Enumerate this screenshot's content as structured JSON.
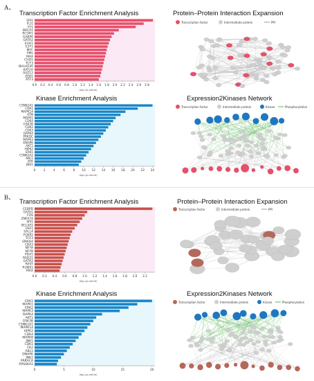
{
  "panels": [
    {
      "label": "A、",
      "tf_title": "Transcription Factor Enrichment Analysis",
      "ppi_title": "Protein–Protein Interaction Expansion",
      "kinase_title": "Kinase Enrichment Analysis",
      "x2k_title": "Expression2Kinases Network"
    },
    {
      "label": "B、",
      "tf_title": "Transcription Factor Enrichment Analysis",
      "ppi_title": "Protein–Protein Interaction Expansion",
      "kinase_title": "Kinase Enrichment Analysis",
      "x2k_title": "Expression2Kinases Network"
    }
  ],
  "legend": {
    "tf": "Transcription factor",
    "intermediate": "Intermediate protein",
    "kinase": "Kinase",
    "phospho": "Phosphorylation",
    "ppi": "PPI"
  },
  "colors": {
    "tf_bar_a": "#e8506a",
    "kinase_bar": "#1a86c8",
    "tf_bar_b": "#c8524a",
    "highlight_band": "#f8d7ee",
    "kinase_band": "#d3f0f8",
    "tf_node": "#e5506a",
    "tf_node_b": "#b5685a",
    "inter_node": "#cfcfcf",
    "kinase_node": "#1f77c0",
    "edge_ppi": "#9a9a9a",
    "edge_phos": "#5ab55a"
  },
  "chart_data": [
    {
      "type": "bar",
      "orientation": "horizontal",
      "title": "Transcription Factor Enrichment Analysis",
      "categories": [
        "SPI1",
        "FLI1",
        "YY1",
        "BRCA1",
        "RCOR1",
        "GABPA",
        "GATA2",
        "EGR1",
        "E2F1",
        "MYC",
        "PML",
        "MAX",
        "CHD1",
        "TCF3",
        "BHLHE40",
        "KAT2A",
        "SUZ12",
        "ZEB1",
        "ATF3"
      ],
      "values": [
        2.95,
        2.72,
        2.52,
        2.1,
        1.98,
        1.92,
        1.88,
        1.85,
        1.82,
        1.8,
        1.78,
        1.76,
        1.74,
        1.72,
        1.7,
        1.68,
        1.66,
        1.64,
        1.6
      ],
      "xlabel": "-log₁₀(p-value)",
      "xticks": [
        "0.0",
        "0.2",
        "0.4",
        "0.6",
        "0.8",
        "1.0",
        "1.2",
        "1.4",
        "1.6",
        "1.8",
        "2.0",
        "2.2",
        "2.4",
        "2.6",
        "2.8"
      ],
      "xlim": [
        0,
        3.0
      ]
    },
    {
      "type": "bar",
      "orientation": "horizontal",
      "title": "Kinase Enrichment Analysis",
      "categories": [
        "CSNK2A1",
        "CDK1",
        "MAPK14",
        "ATM",
        "MAPK1",
        "CDK4",
        "GSK3B",
        "CDK2",
        "CDK3",
        "DAPK4",
        "PRKDC",
        "MAPK3",
        "DNAPK",
        "AKT1",
        "HIPK2",
        "ERK1",
        "CSNK2A2",
        "ABL1",
        "ATR",
        "JNK1"
      ],
      "values": [
        24,
        21,
        18.5,
        17.5,
        16.5,
        16,
        15.5,
        15,
        14.5,
        14,
        13.5,
        13,
        12.5,
        12,
        11.5,
        11,
        10.5,
        10,
        9.5,
        9
      ],
      "xlabel": "-log₁₀(p-value)",
      "xticks": [
        "0",
        "2",
        "4",
        "6",
        "8",
        "10",
        "12",
        "14",
        "16",
        "18",
        "20",
        "22",
        "24"
      ],
      "xlim": [
        0,
        24.5
      ]
    },
    {
      "type": "bar",
      "orientation": "horizontal",
      "title": "Transcription Factor Enrichment Analysis",
      "categories": [
        "CEBPD",
        "GATA1",
        "FOS",
        "ZNF674",
        "SPI1",
        "BCLAF1",
        "USF1",
        "SALL4",
        "FOXP2",
        "TCF3",
        "SMAD4",
        "CBX3",
        "NFYA",
        "NFYB",
        "PDX1",
        "RAD21",
        "GATA2",
        "REST",
        "RUNX1",
        "MAX"
      ],
      "values": [
        2.35,
        1.05,
        1.0,
        0.95,
        0.9,
        0.85,
        0.8,
        0.75,
        0.72,
        0.7,
        0.68,
        0.66,
        0.64,
        0.62,
        0.6,
        0.58,
        0.56,
        0.54,
        0.52,
        0.5
      ],
      "xlabel": "-log₁₀(p-value)",
      "xticks": [
        "0.0",
        "0.2",
        "0.4",
        "0.6",
        "0.8",
        "1.0",
        "1.2",
        "1.4",
        "1.6",
        "1.8",
        "2.0",
        "2.2"
      ],
      "xlim": [
        0,
        2.4
      ]
    },
    {
      "type": "bar",
      "orientation": "horizontal",
      "title": "Kinase Enrichment Analysis",
      "categories": [
        "ERK1",
        "MAPK1",
        "ERK2",
        "MAPK3",
        "DAPK4",
        "AKT1",
        "GSK3B",
        "CSNK2A1",
        "MAPK14",
        "HIPK2",
        "CDK4",
        "MAPK8",
        "JNK1",
        "CDK1",
        "CK2",
        "ABL1",
        "DNAPK",
        "JNK2",
        "PRKACA",
        "RPS6KA1"
      ],
      "values": [
        20,
        17.5,
        16,
        14.5,
        11.5,
        10.5,
        10,
        9.5,
        9,
        8.5,
        8,
        7.5,
        7,
        6.5,
        6,
        5.5,
        5,
        4.5,
        4,
        3.8
      ],
      "xlabel": "-log₁₀(p-value)",
      "xticks": [
        "0",
        "5",
        "10",
        "15",
        "20"
      ],
      "xlim": [
        0,
        20.5
      ]
    }
  ]
}
